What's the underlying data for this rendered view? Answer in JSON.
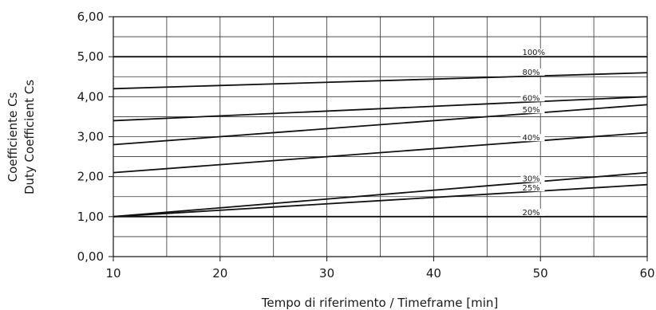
{
  "chart_data": {
    "type": "line",
    "xlabel": "Tempo di riferimento / Timeframe  [min]",
    "ylabel": [
      "Coefficiente Cs",
      "Duty Coefficient Cs"
    ],
    "xlim": [
      10,
      60
    ],
    "ylim": [
      0,
      6
    ],
    "x_ticks": [
      10,
      20,
      30,
      40,
      50,
      60
    ],
    "x_tick_labels": [
      "10",
      "20",
      "30",
      "40",
      "50",
      "60"
    ],
    "y_ticks": [
      0,
      1,
      2,
      3,
      4,
      5,
      6
    ],
    "y_tick_labels": [
      "0,00",
      "1,00",
      "2,00",
      "3,00",
      "4,00",
      "5,00",
      "6,00"
    ],
    "grid": {
      "on": true,
      "x_step": 5,
      "y_step": 0.5
    },
    "series": [
      {
        "name": "100%",
        "x": [
          10,
          60
        ],
        "values": [
          5.0,
          5.0
        ],
        "label_x": 48.3
      },
      {
        "name": "80%",
        "x": [
          10,
          60
        ],
        "values": [
          4.2,
          4.6
        ],
        "label_x": 48.3
      },
      {
        "name": "60%",
        "x": [
          10,
          60
        ],
        "values": [
          3.4,
          4.0
        ],
        "label_x": 48.3
      },
      {
        "name": "50%",
        "x": [
          10,
          60
        ],
        "values": [
          2.8,
          3.8
        ],
        "label_x": 48.3
      },
      {
        "name": "40%",
        "x": [
          10,
          60
        ],
        "values": [
          2.1,
          3.1
        ],
        "label_x": 48.3
      },
      {
        "name": "30%",
        "x": [
          10,
          60
        ],
        "values": [
          1.0,
          2.1
        ],
        "label_x": 48.3
      },
      {
        "name": "25%",
        "x": [
          10,
          60
        ],
        "values": [
          1.0,
          1.8
        ],
        "label_x": 48.3
      },
      {
        "name": "20%",
        "x": [
          10,
          60
        ],
        "values": [
          1.0,
          1.0
        ],
        "label_x": 48.3
      }
    ]
  }
}
